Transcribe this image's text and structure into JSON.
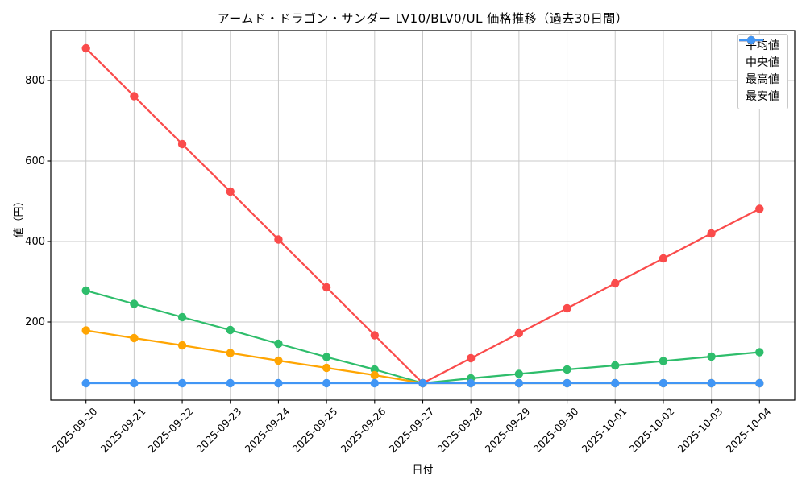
{
  "chart_data": {
    "type": "line",
    "title": "アームド・ドラゴン・サンダー LV10/BLV0/UL 価格推移（過去30日間）",
    "xlabel": "日付",
    "ylabel": "値（円）",
    "x": [
      "2025-09-20",
      "2025-09-21",
      "2025-09-22",
      "2025-09-23",
      "2025-09-24",
      "2025-09-25",
      "2025-09-26",
      "2025-09-27",
      "2025-09-28",
      "2025-09-29",
      "2025-09-30",
      "2025-10-01",
      "2025-10-02",
      "2025-10-03",
      "2025-10-04"
    ],
    "series": [
      {
        "key": "average",
        "name": "平均値",
        "color": "#2ebd6b",
        "values": [
          278,
          245,
          212,
          180,
          146,
          113,
          82,
          48,
          60,
          71,
          82,
          92,
          103,
          114,
          125
        ]
      },
      {
        "key": "median",
        "name": "中央値",
        "color": "#ffa502",
        "values": [
          179,
          160,
          142,
          123,
          104,
          86,
          68,
          48,
          48,
          48,
          48,
          48,
          48,
          48,
          48
        ]
      },
      {
        "key": "max",
        "name": "最高値",
        "color": "#fa4b4b",
        "values": [
          880,
          761,
          642,
          524,
          405,
          286,
          167,
          48,
          110,
          172,
          234,
          296,
          358,
          420,
          481
        ]
      },
      {
        "key": "min",
        "name": "最安値",
        "color": "#4196f5",
        "values": [
          48,
          48,
          48,
          48,
          48,
          48,
          48,
          48,
          48,
          48,
          48,
          48,
          48,
          48,
          48
        ]
      }
    ],
    "yticks": [
      200,
      400,
      600,
      800
    ],
    "ylim": [
      6,
      924
    ],
    "grid": true,
    "legend_position": "top-right"
  },
  "colors": {
    "background": "#ffffff",
    "grid": "#c9c9c9",
    "axis": "#000000",
    "legend_border": "#c8c8c8"
  }
}
